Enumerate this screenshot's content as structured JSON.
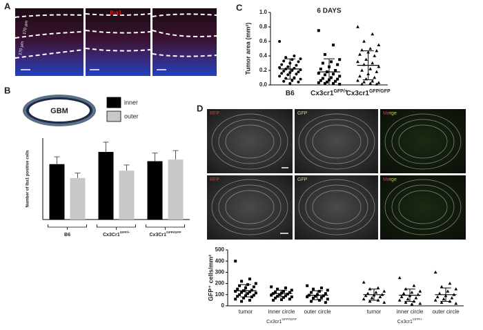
{
  "panels": [
    "A",
    "B",
    "C",
    "D"
  ],
  "panel_a": {
    "stain": "Iba1",
    "scale_labels": [
      "170 µm",
      "170 µm"
    ]
  },
  "panel_b": {
    "gbm_label": "GBM"
  },
  "panel_d": {
    "channels": [
      "RFP",
      "GFP",
      "Merge",
      "RFP",
      "GFP",
      "Merge"
    ]
  },
  "chart_data": [
    {
      "type": "bar",
      "ylabel": "Number of Iba1 positive cells",
      "categories": [
        "B6",
        "Cx3Cr1",
        "Cx3Cr1"
      ],
      "category_superscripts": [
        null,
        "GFP/+",
        "GFP/GFP"
      ],
      "ylim": [
        0,
        500
      ],
      "series": [
        {
          "name": "inner",
          "color": "#000000",
          "values": [
            340,
            415,
            358
          ],
          "errors": [
            45,
            60,
            50
          ]
        },
        {
          "name": "outer",
          "color": "#c8c8c8",
          "values": [
            255,
            300,
            368
          ],
          "errors": [
            30,
            35,
            55
          ]
        }
      ]
    },
    {
      "type": "dotplot",
      "title": "6 DAYS",
      "ylabel": "Tumor area (mm²)",
      "ylim": [
        0,
        1
      ],
      "yticks": [
        {
          "value": 0,
          "label": "0.0"
        },
        0.2,
        0.4,
        0.6,
        0.8,
        {
          "value": 1,
          "label": "1.0"
        }
      ],
      "groups": [
        {
          "label": "B6",
          "marker": "circle",
          "mean": 0.22,
          "sd": 0.14,
          "values": [
            0.6,
            0.4,
            0.38,
            0.36,
            0.35,
            0.33,
            0.32,
            0.3,
            0.28,
            0.27,
            0.25,
            0.24,
            0.23,
            0.22,
            0.21,
            0.2,
            0.19,
            0.18,
            0.17,
            0.16,
            0.15,
            0.14,
            0.12,
            0.1,
            0.09,
            0.08,
            0.06,
            0.05,
            0.04,
            0.02
          ]
        },
        {
          "label": "Cx3cr1",
          "sup": "GFP/+",
          "marker": "square",
          "mean": 0.18,
          "sd": 0.18,
          "values": [
            0.75,
            0.55,
            0.42,
            0.35,
            0.32,
            0.3,
            0.28,
            0.25,
            0.22,
            0.2,
            0.18,
            0.16,
            0.15,
            0.14,
            0.12,
            0.1,
            0.09,
            0.08,
            0.07,
            0.06,
            0.05,
            0.04,
            0.03,
            0.02,
            0.02,
            0.01
          ]
        },
        {
          "label": "Cx3cr1",
          "sup": "GFP/GFP",
          "marker": "triangle",
          "mean": 0.27,
          "sd": 0.2,
          "values": [
            0.8,
            0.7,
            0.6,
            0.55,
            0.5,
            0.48,
            0.47,
            0.45,
            0.42,
            0.4,
            0.35,
            0.32,
            0.3,
            0.28,
            0.25,
            0.22,
            0.2,
            0.18,
            0.15,
            0.12,
            0.1,
            0.08,
            0.06,
            0.05,
            0.04,
            0.03,
            0.02,
            0.01,
            0.01
          ]
        }
      ]
    },
    {
      "type": "dotplot",
      "ylabel": "GFP⁺ cells/mm²",
      "ylim": [
        0,
        500
      ],
      "yticks": [
        0,
        100,
        200,
        300,
        400,
        500
      ],
      "groups": [
        {
          "label": "Cx3cr1",
          "sup": "GFP/GFP",
          "marker": "square",
          "categories": [
            "tumor",
            "inner circle",
            "outer circle"
          ],
          "mean": [
            135,
            110,
            95
          ],
          "sd": [
            55,
            30,
            40
          ],
          "values": [
            [
              400,
              240,
              220,
              200,
              190,
              180,
              170,
              160,
              150,
              140,
              135,
              130,
              125,
              120,
              115,
              110,
              100,
              95,
              90,
              85,
              80,
              70,
              60,
              50,
              40
            ],
            [
              170,
              160,
              150,
              140,
              130,
              125,
              120,
              115,
              110,
              105,
              100,
              95,
              90,
              85,
              80,
              75,
              70,
              60,
              55,
              50
            ],
            [
              180,
              160,
              150,
              140,
              130,
              120,
              110,
              100,
              95,
              90,
              85,
              80,
              75,
              70,
              60,
              50,
              40,
              30
            ]
          ]
        },
        {
          "label": "Cx3cr1",
          "sup": "GFP/+",
          "marker": "triangle",
          "categories": [
            "tumor",
            "inner circle",
            "outer circle"
          ],
          "mean": [
            100,
            95,
            100
          ],
          "sd": [
            50,
            55,
            60
          ],
          "values": [
            [
              210,
              160,
              150,
              130,
              120,
              110,
              100,
              95,
              90,
              80,
              70,
              60,
              50,
              40,
              30
            ],
            [
              250,
              180,
              150,
              130,
              120,
              110,
              100,
              90,
              80,
              70,
              60,
              50,
              40,
              30,
              20,
              15
            ],
            [
              300,
              200,
              170,
              150,
              130,
              110,
              100,
              90,
              80,
              70,
              60,
              50,
              40,
              30,
              20
            ]
          ]
        }
      ]
    }
  ]
}
